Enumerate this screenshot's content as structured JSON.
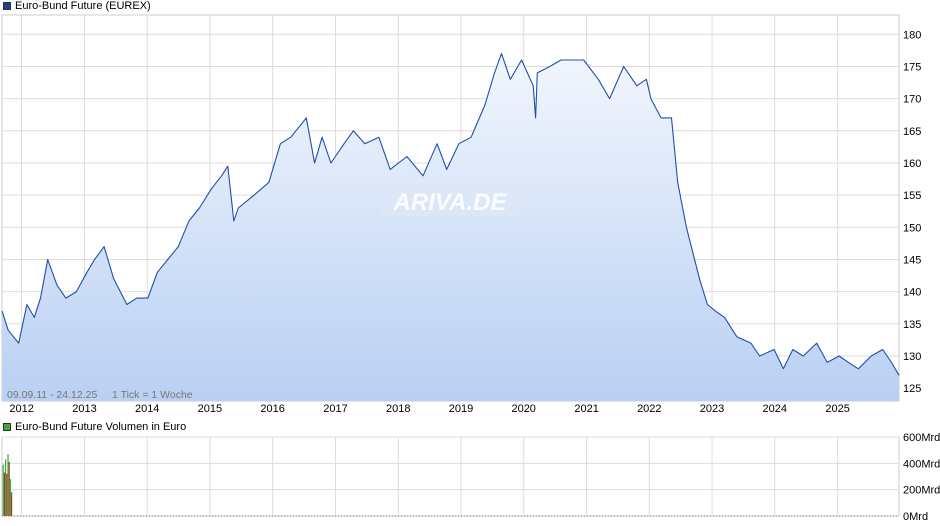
{
  "legend": {
    "price_label": "Euro-Bund Future (EUREX)",
    "volume_label": "Euro-Bund Future Volumen in Euro"
  },
  "info": {
    "range": "09.09.11 - 24.12.25",
    "tick": "1 Tick = 1 Woche",
    "watermark": "ARIVA.DE"
  },
  "colors": {
    "line": "#1f4fa8",
    "fill_top": "#eef3fc",
    "fill_bottom": "#bcd2f4",
    "grid": "#dddddd",
    "volume_green": "#3aa83a",
    "volume_red": "#a83a2a",
    "legend_price": "#1f3f8f",
    "legend_volume": "#3aa83a"
  },
  "chart_data": [
    {
      "type": "area",
      "title": "Euro-Bund Future (EUREX)",
      "xlabel": "",
      "ylabel": "",
      "x_ticks": [
        "2012",
        "2013",
        "2014",
        "2015",
        "2016",
        "2017",
        "2018",
        "2019",
        "2020",
        "2021",
        "2022",
        "2023",
        "2024",
        "2025"
      ],
      "y_ticks": [
        125,
        130,
        135,
        140,
        145,
        150,
        155,
        160,
        165,
        170,
        175,
        180
      ],
      "xlim": [
        "2011-09-09",
        "2025-12-24"
      ],
      "ylim": [
        123,
        183
      ],
      "grid": true,
      "series": [
        {
          "name": "Euro-Bund Future (EUREX)",
          "x": [
            "2011-09-09",
            "2011-10-15",
            "2011-12-15",
            "2012-02-01",
            "2012-03-15",
            "2012-04-20",
            "2012-06-01",
            "2012-07-25",
            "2012-09-15",
            "2012-11-15",
            "2013-01-15",
            "2013-03-01",
            "2013-04-25",
            "2013-06-20",
            "2013-09-05",
            "2013-11-01",
            "2014-01-05",
            "2014-03-01",
            "2014-05-01",
            "2014-07-01",
            "2014-09-01",
            "2014-11-01",
            "2015-01-10",
            "2015-03-10",
            "2015-04-15",
            "2015-05-20",
            "2015-06-15",
            "2015-09-15",
            "2015-12-10",
            "2016-02-15",
            "2016-04-15",
            "2016-06-15",
            "2016-07-15",
            "2016-09-01",
            "2016-10-15",
            "2016-12-05",
            "2017-02-20",
            "2017-04-15",
            "2017-06-20",
            "2017-09-10",
            "2017-11-15",
            "2018-02-20",
            "2018-05-25",
            "2018-08-15",
            "2018-10-10",
            "2018-12-20",
            "2019-03-01",
            "2019-05-20",
            "2019-07-15",
            "2019-08-25",
            "2019-10-15",
            "2019-12-20",
            "2020-02-25",
            "2020-03-10",
            "2020-03-20",
            "2020-06-01",
            "2020-08-05",
            "2020-10-15",
            "2020-12-15",
            "2021-03-10",
            "2021-05-15",
            "2021-08-05",
            "2021-10-20",
            "2021-12-15",
            "2022-01-10",
            "2022-03-10",
            "2022-05-10",
            "2022-06-15",
            "2022-08-05",
            "2022-10-20",
            "2022-12-05",
            "2023-01-20",
            "2023-03-15",
            "2023-05-25",
            "2023-08-15",
            "2023-10-05",
            "2023-12-28",
            "2024-02-20",
            "2024-04-15",
            "2024-06-15",
            "2024-09-01",
            "2024-11-01",
            "2025-01-10",
            "2025-03-05",
            "2025-05-01",
            "2025-07-15",
            "2025-09-20",
            "2025-11-10",
            "2025-12-24"
          ],
          "values": [
            137,
            134,
            132,
            138,
            136,
            139,
            145,
            141,
            139,
            140,
            143,
            145,
            147,
            142,
            138,
            139,
            139,
            143,
            145,
            147,
            151,
            153,
            156,
            158,
            159.5,
            151,
            153,
            155,
            157,
            163,
            164,
            166,
            167,
            160,
            164,
            160,
            163,
            165,
            163,
            164,
            159,
            161,
            158,
            163,
            159,
            163,
            164,
            169,
            174,
            177,
            173,
            176,
            172,
            167,
            174,
            175,
            176,
            176,
            176,
            173,
            170,
            175,
            172,
            173,
            170,
            167,
            167,
            157,
            150,
            142,
            138,
            137,
            136,
            133,
            132,
            130,
            131,
            128,
            131,
            130,
            132,
            129,
            130,
            129,
            128,
            130,
            131,
            129,
            127
          ]
        }
      ]
    },
    {
      "type": "bar",
      "title": "Euro-Bund Future Volumen in Euro",
      "ylabel": "",
      "y_ticks": [
        "600Mrd",
        "400Mrd",
        "200Mrd",
        "0Mrd"
      ],
      "ylim": [
        0,
        600
      ],
      "unit": "Mrd",
      "series": [
        {
          "name": "Euro-Bund Future Volumen in Euro",
          "x": [
            "2011-09-16",
            "2011-09-23",
            "2011-09-30",
            "2011-10-07",
            "2011-10-14",
            "2011-10-21",
            "2011-10-28",
            "2011-11-04"
          ],
          "values": [
            390,
            330,
            430,
            320,
            470,
            410,
            280,
            180
          ]
        }
      ]
    }
  ]
}
